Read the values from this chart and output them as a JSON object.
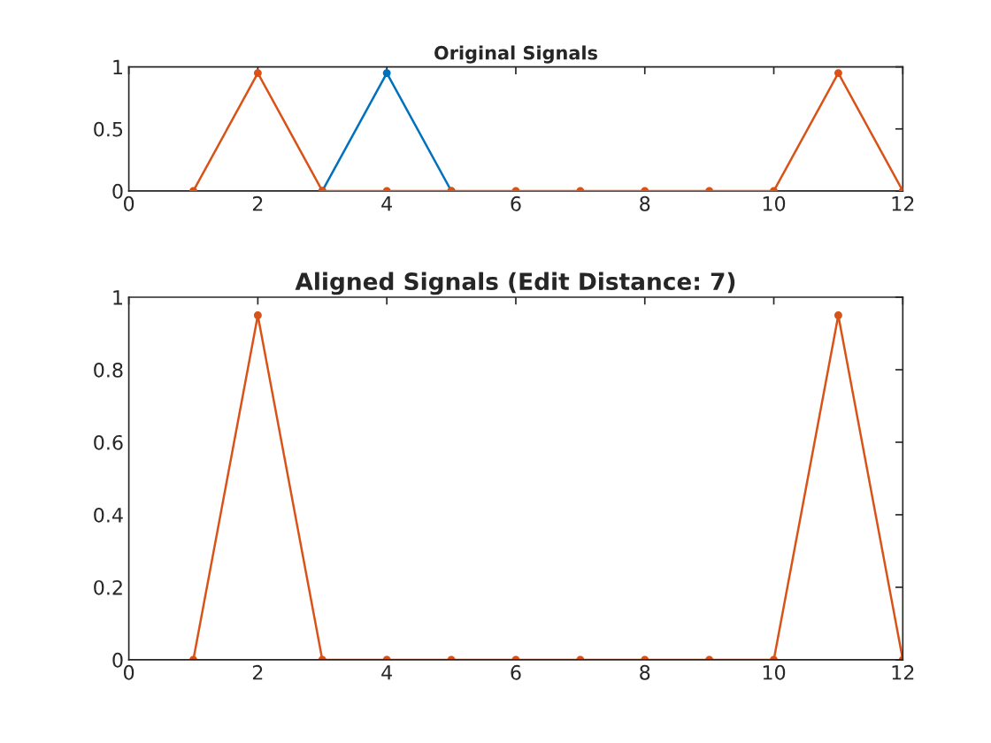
{
  "chart_data": [
    {
      "type": "line",
      "title": "Original Signals",
      "marker": "circle",
      "line_style": "solid",
      "xlim": [
        0,
        12
      ],
      "ylim": [
        0,
        1
      ],
      "xticks": [
        0,
        2,
        4,
        6,
        8,
        10,
        12
      ],
      "yticks": [
        0,
        0.5,
        1
      ],
      "series": [
        {
          "color": "#0072bd",
          "x": [
            3,
            4,
            5
          ],
          "values": [
            0,
            0.95,
            0
          ]
        },
        {
          "color": "#d95319",
          "x": [
            1,
            2,
            3,
            4,
            5,
            6,
            7,
            8,
            9,
            10,
            11,
            12
          ],
          "values": [
            0,
            0.95,
            0,
            0,
            0,
            0,
            0,
            0,
            0,
            0,
            0.95,
            0
          ]
        }
      ]
    },
    {
      "type": "line",
      "title": "Aligned Signals (Edit Distance: 7)",
      "marker": "circle",
      "line_style": "solid",
      "xlim": [
        0,
        12
      ],
      "ylim": [
        0,
        1
      ],
      "xticks": [
        0,
        2,
        4,
        6,
        8,
        10,
        12
      ],
      "yticks": [
        0,
        0.2,
        0.4,
        0.6,
        0.8,
        1
      ],
      "series": [
        {
          "color": "#d95319",
          "x": [
            1,
            2,
            3,
            4,
            5,
            6,
            7,
            8,
            9,
            10,
            11,
            12
          ],
          "values": [
            0,
            0.95,
            0,
            0,
            0,
            0,
            0,
            0,
            0,
            0,
            0.95,
            0
          ]
        }
      ]
    }
  ]
}
